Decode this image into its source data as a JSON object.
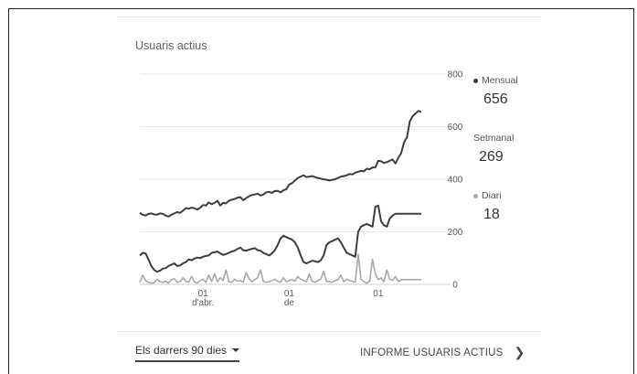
{
  "card": {
    "title": "Usuaris actius",
    "range_label": "Els darrers 90 dies",
    "report_link": "INFORME USUARIS ACTIUS"
  },
  "legend": [
    {
      "label": "Mensual",
      "value": "656",
      "color": "#3a3a3a"
    },
    {
      "label": "Setmanal",
      "value": "269",
      "color": "#3a3a3a"
    },
    {
      "label": "Diari",
      "value": "18",
      "color": "#aaaaaa"
    }
  ],
  "chart_data": {
    "type": "line",
    "title": "Usuaris actius",
    "ylim": [
      0,
      800
    ],
    "yticks": [
      0,
      200,
      400,
      600,
      800
    ],
    "x_tick_labels": [
      {
        "index": 22,
        "lines": [
          "01",
          "d'abr."
        ]
      },
      {
        "index": 52,
        "lines": [
          "01",
          "de"
        ]
      },
      {
        "index": 83,
        "lines": [
          "01",
          ""
        ]
      }
    ],
    "grid": true,
    "legend_position": "right",
    "series": [
      {
        "name": "Mensual",
        "color": "#3d3d3d",
        "values": [
          272,
          265,
          262,
          268,
          270,
          266,
          265,
          270,
          268,
          262,
          258,
          265,
          270,
          275,
          272,
          280,
          290,
          288,
          292,
          290,
          285,
          292,
          302,
          300,
          312,
          305,
          310,
          318,
          300,
          310,
          308,
          318,
          322,
          325,
          330,
          332,
          320,
          328,
          335,
          340,
          342,
          345,
          338,
          342,
          350,
          352,
          348,
          355,
          356,
          350,
          358,
          362,
          380,
          385,
          395,
          405,
          410,
          415,
          408,
          410,
          412,
          408,
          405,
          402,
          400,
          398,
          395,
          398,
          400,
          405,
          410,
          412,
          415,
          420,
          418,
          425,
          428,
          432,
          430,
          440,
          438,
          445,
          445,
          470,
          468,
          462,
          465,
          470,
          475,
          460,
          482,
          500,
          540,
          560,
          620,
          640,
          650,
          660,
          656
        ]
      },
      {
        "name": "Setmanal",
        "color": "#3d3d3d",
        "values": [
          110,
          120,
          118,
          95,
          70,
          55,
          48,
          52,
          60,
          62,
          70,
          75,
          80,
          70,
          72,
          80,
          85,
          95,
          92,
          98,
          102,
          100,
          105,
          108,
          110,
          120,
          122,
          125,
          118,
          112,
          115,
          120,
          125,
          128,
          135,
          140,
          130,
          128,
          132,
          135,
          138,
          130,
          128,
          120,
          115,
          110,
          118,
          130,
          150,
          175,
          185,
          180,
          175,
          170,
          160,
          140,
          110,
          85,
          80,
          85,
          90,
          88,
          85,
          92,
          110,
          150,
          160,
          165,
          170,
          175,
          160,
          140,
          120,
          115,
          110,
          105,
          200,
          220,
          225,
          230,
          225,
          220,
          295,
          300,
          240,
          225,
          220,
          250,
          262,
          269,
          269,
          269,
          269,
          269,
          269,
          269,
          269,
          269,
          269
        ]
      },
      {
        "name": "Diari",
        "color": "#a8a8a8",
        "values": [
          8,
          35,
          15,
          8,
          5,
          6,
          20,
          10,
          8,
          12,
          5,
          18,
          22,
          8,
          10,
          25,
          12,
          8,
          30,
          10,
          5,
          15,
          20,
          8,
          35,
          12,
          40,
          10,
          25,
          15,
          55,
          10,
          8,
          20,
          12,
          15,
          8,
          45,
          22,
          10,
          18,
          25,
          55,
          12,
          8,
          10,
          15,
          20,
          12,
          8,
          25,
          10,
          15,
          18,
          12,
          30,
          20,
          15,
          10,
          40,
          12,
          8,
          15,
          20,
          50,
          10,
          12,
          8,
          15,
          18,
          35,
          10,
          20,
          15,
          12,
          8,
          115,
          20,
          10,
          5,
          12,
          95,
          40,
          18,
          25,
          10,
          55,
          20,
          15,
          30,
          10,
          18,
          18,
          18,
          18,
          18,
          18,
          18,
          18
        ]
      }
    ]
  }
}
